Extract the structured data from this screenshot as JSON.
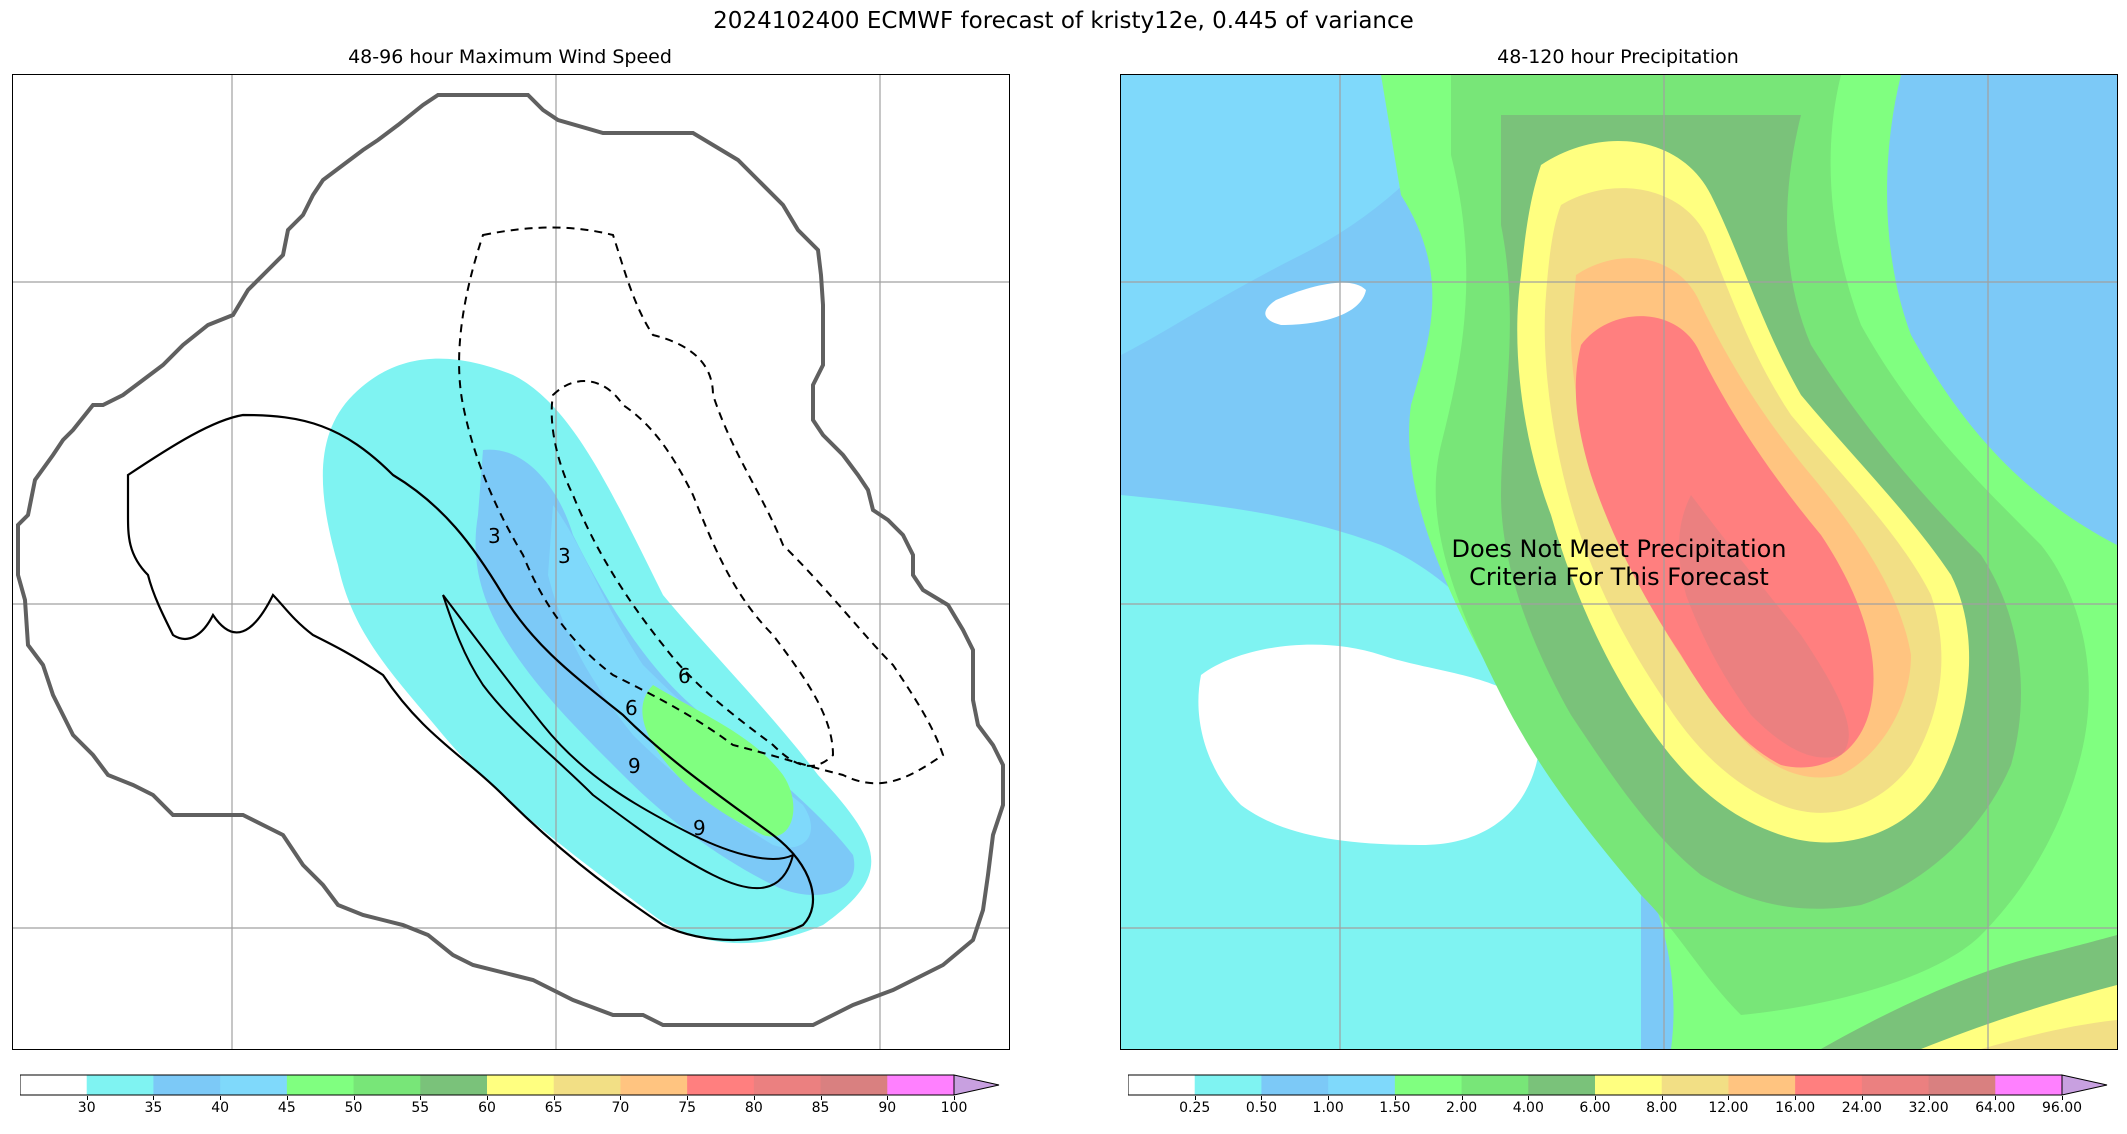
{
  "figure": {
    "title": "2024102400 ECMWF forecast of kristy12e, 0.445 of variance"
  },
  "chart_data": [
    {
      "type": "heatmap",
      "title": "48-96 hour Maximum Wind Speed",
      "grid": true,
      "colorbar": {
        "ticks": [
          "30",
          "35",
          "40",
          "45",
          "50",
          "55",
          "60",
          "65",
          "70",
          "75",
          "80",
          "85",
          "90",
          "100"
        ],
        "colors": [
          "#ffffff",
          "#7ff3f2",
          "#7cc9f7",
          "#7fd9fb",
          "#80ff80",
          "#78e678",
          "#7ac27a",
          "#ffff80",
          "#f2df85",
          "#ffc480",
          "#ff7f7f",
          "#eb8080",
          "#d98080",
          "#ff80ff",
          "#c8a0e0"
        ],
        "extend": "max"
      },
      "contours": [
        {
          "label": "3",
          "style": "solid"
        },
        {
          "label": "3",
          "style": "dashed"
        },
        {
          "label": "6",
          "style": "solid"
        },
        {
          "label": "6",
          "style": "dashed"
        },
        {
          "label": "9",
          "style": "solid"
        }
      ]
    },
    {
      "type": "heatmap",
      "title": "48-120 hour Precipitation",
      "grid": true,
      "annotation": "Does Not Meet Precipitation\nCriteria For This Forecast",
      "colorbar": {
        "ticks": [
          "0.25",
          "0.50",
          "1.00",
          "1.50",
          "2.00",
          "4.00",
          "6.00",
          "8.00",
          "12.00",
          "16.00",
          "24.00",
          "32.00",
          "64.00",
          "96.00"
        ],
        "colors": [
          "#ffffff",
          "#7ff3f2",
          "#7cc9f7",
          "#7fd9fb",
          "#80ff80",
          "#78e678",
          "#7ac27a",
          "#ffff80",
          "#f2df85",
          "#ffc480",
          "#ff7f7f",
          "#eb8080",
          "#d98080",
          "#ff80ff",
          "#c8a0e0"
        ],
        "extend": "max"
      }
    }
  ]
}
